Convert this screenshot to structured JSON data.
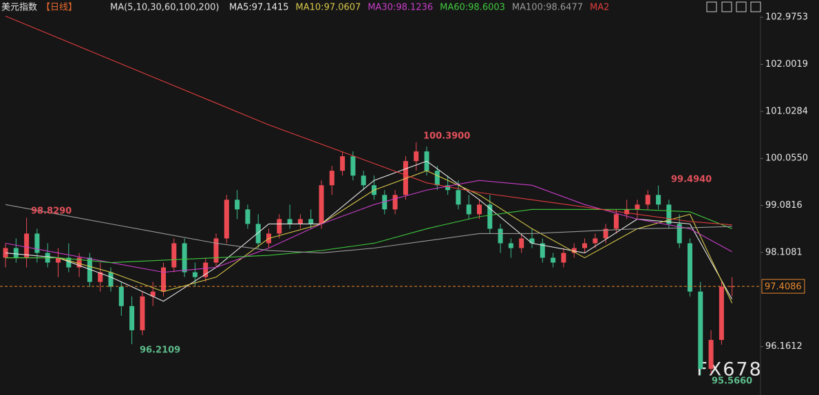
{
  "chart_data": {
    "type": "candlestick",
    "title": "美元指数",
    "period": "【日线】",
    "ma_caption": "MA(5,10,30,60,100,200)",
    "ylim": [
      95.16,
      103.02
    ],
    "yticks": [
      102.9753,
      102.0019,
      101.0284,
      {
        "value": 100.055,
        "label": "100.0550"
      },
      99.0816,
      98.1081,
      96.1612
    ],
    "current_price": 97.4086,
    "up_color": "#ec4a52",
    "down_color": "#3dbf8f",
    "watermark": "FX678",
    "annotations": [
      {
        "text": "98.8290",
        "color": "#e0505a"
      },
      {
        "text": "100.3900",
        "color": "#e0505a"
      },
      {
        "text": "99.4940",
        "color": "#e0505a"
      },
      {
        "text": "96.2109",
        "color": "#5dbb8a"
      },
      {
        "text": "95.5660",
        "color": "#5dbb8a"
      }
    ],
    "ohlc": [
      [
        98.0,
        98.3,
        97.8,
        98.2
      ],
      [
        98.2,
        98.4,
        97.9,
        98.0
      ],
      [
        98.0,
        98.829,
        97.8,
        98.5
      ],
      [
        98.5,
        98.6,
        97.9,
        98.1
      ],
      [
        98.1,
        98.3,
        97.8,
        97.9
      ],
      [
        97.9,
        98.2,
        97.6,
        98.0
      ],
      [
        98.0,
        98.3,
        97.7,
        97.8
      ],
      [
        97.8,
        98.1,
        97.6,
        98.0
      ],
      [
        98.0,
        98.1,
        97.4,
        97.5
      ],
      [
        97.5,
        97.9,
        97.3,
        97.7
      ],
      [
        97.7,
        97.8,
        97.3,
        97.4
      ],
      [
        97.4,
        97.5,
        96.8,
        97.0
      ],
      [
        97.0,
        97.2,
        96.2109,
        96.5
      ],
      [
        96.5,
        97.3,
        96.4,
        97.2
      ],
      [
        97.2,
        97.5,
        97.0,
        97.3
      ],
      [
        97.3,
        97.9,
        97.2,
        97.8
      ],
      [
        97.8,
        98.4,
        97.7,
        98.3
      ],
      [
        98.3,
        98.4,
        97.6,
        97.7
      ],
      [
        97.7,
        97.9,
        97.4,
        97.6
      ],
      [
        97.6,
        98.0,
        97.5,
        97.9
      ],
      [
        97.9,
        98.5,
        97.8,
        98.4
      ],
      [
        98.4,
        99.3,
        98.3,
        99.2
      ],
      [
        99.2,
        99.4,
        98.8,
        99.0
      ],
      [
        99.0,
        99.1,
        98.6,
        98.7
      ],
      [
        98.7,
        98.9,
        98.2,
        98.3
      ],
      [
        98.3,
        98.6,
        98.2,
        98.5
      ],
      [
        98.5,
        98.9,
        98.4,
        98.8
      ],
      [
        98.8,
        99.1,
        98.6,
        98.7
      ],
      [
        98.7,
        98.9,
        98.6,
        98.8
      ],
      [
        98.8,
        99.0,
        98.6,
        98.7
      ],
      [
        98.7,
        99.6,
        98.6,
        99.5
      ],
      [
        99.5,
        99.9,
        99.3,
        99.8
      ],
      [
        99.8,
        100.2,
        99.7,
        100.1
      ],
      [
        100.1,
        100.2,
        99.6,
        99.7
      ],
      [
        99.7,
        99.8,
        99.4,
        99.5
      ],
      [
        99.5,
        99.7,
        99.2,
        99.3
      ],
      [
        99.3,
        99.4,
        98.9,
        99.0
      ],
      [
        99.0,
        99.4,
        98.9,
        99.3
      ],
      [
        99.3,
        100.1,
        99.2,
        100.0
      ],
      [
        100.0,
        100.39,
        99.8,
        100.2
      ],
      [
        100.2,
        100.3,
        99.7,
        99.8
      ],
      [
        99.8,
        99.9,
        99.4,
        99.5
      ],
      [
        99.5,
        99.7,
        99.3,
        99.4
      ],
      [
        99.4,
        99.6,
        99.0,
        99.1
      ],
      [
        99.1,
        99.3,
        98.8,
        98.9
      ],
      [
        98.9,
        99.2,
        98.8,
        99.1
      ],
      [
        99.1,
        99.3,
        98.5,
        98.6
      ],
      [
        98.6,
        98.7,
        98.1,
        98.3
      ],
      [
        98.3,
        98.4,
        98.0,
        98.2
      ],
      [
        98.2,
        98.5,
        98.1,
        98.4
      ],
      [
        98.4,
        98.6,
        98.2,
        98.3
      ],
      [
        98.3,
        98.4,
        97.9,
        98.0
      ],
      [
        98.0,
        98.1,
        97.8,
        97.9
      ],
      [
        97.9,
        98.2,
        97.8,
        98.1
      ],
      [
        98.1,
        98.3,
        98.0,
        98.2
      ],
      [
        98.2,
        98.4,
        98.1,
        98.3
      ],
      [
        98.3,
        98.5,
        98.2,
        98.4
      ],
      [
        98.4,
        98.7,
        98.3,
        98.6
      ],
      [
        98.6,
        99.0,
        98.5,
        98.9
      ],
      [
        98.9,
        99.2,
        98.8,
        99.0
      ],
      [
        99.0,
        99.2,
        98.8,
        99.1
      ],
      [
        99.1,
        99.4,
        99.0,
        99.3
      ],
      [
        99.3,
        99.494,
        99.0,
        99.1
      ],
      [
        99.1,
        99.2,
        98.6,
        98.7
      ],
      [
        98.7,
        98.9,
        98.2,
        98.3
      ],
      [
        98.3,
        98.4,
        97.2,
        97.3
      ],
      [
        97.3,
        97.5,
        95.566,
        95.7
      ],
      [
        95.7,
        96.5,
        95.6,
        96.3
      ],
      [
        96.3,
        97.5,
        96.2,
        97.4
      ],
      [
        97.4,
        97.6,
        97.2,
        97.4086
      ]
    ],
    "x": [
      0,
      5,
      10,
      15,
      20,
      25,
      30,
      35,
      40,
      45,
      50,
      55,
      60,
      65,
      69
    ],
    "series": [
      {
        "name": "MA5:97.1415",
        "color": "#e8e8e8",
        "values": [
          98.1,
          98.0,
          97.6,
          97.1,
          97.8,
          98.7,
          98.7,
          99.6,
          100.0,
          99.2,
          98.3,
          98.1,
          98.8,
          98.7,
          97.1415
        ]
      },
      {
        "name": "MA10:97.0607",
        "color": "#d9c84a",
        "values": [
          98.0,
          98.0,
          97.7,
          97.3,
          97.6,
          98.4,
          98.7,
          99.4,
          99.8,
          99.3,
          98.6,
          98.0,
          98.6,
          98.9,
          97.0607
        ]
      },
      {
        "name": "MA30:98.1236",
        "color": "#c93ec9",
        "values": [
          98.3,
          98.1,
          97.9,
          97.7,
          97.8,
          98.2,
          98.7,
          99.1,
          99.4,
          99.6,
          99.5,
          99.1,
          98.8,
          98.6,
          98.1236
        ]
      },
      {
        "name": "MA60:98.6003",
        "color": "#3fc93f",
        "values": [
          98.0,
          98.0,
          97.9,
          97.95,
          98.0,
          98.05,
          98.15,
          98.3,
          98.6,
          98.85,
          99.0,
          99.0,
          99.0,
          98.95,
          98.6003
        ]
      },
      {
        "name": "MA100:98.6477",
        "color": "#9a9a9a",
        "values": [
          99.1,
          98.9,
          98.7,
          98.5,
          98.3,
          98.15,
          98.1,
          98.2,
          98.35,
          98.5,
          98.5,
          98.55,
          98.6,
          98.62,
          98.6477
        ]
      },
      {
        "name": "MA2",
        "color": "#e03c3c",
        "values": [
          103.0,
          102.55,
          102.1,
          101.65,
          101.2,
          100.75,
          100.35,
          99.95,
          99.55,
          99.35,
          99.2,
          99.05,
          98.9,
          98.75,
          98.68
        ]
      }
    ]
  }
}
